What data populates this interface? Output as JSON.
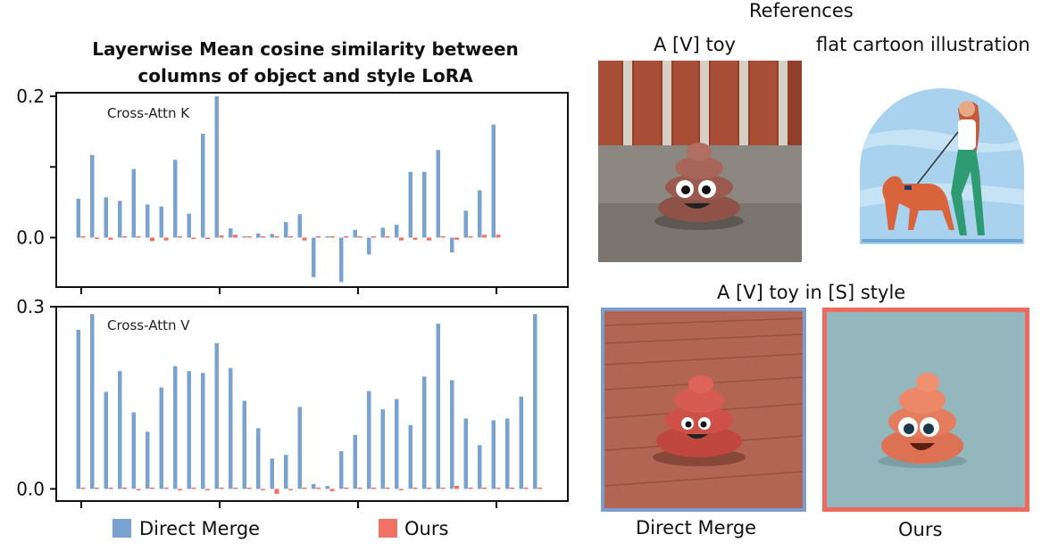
{
  "figure": {
    "references_label": "References",
    "ref1_label": "A [V] toy",
    "ref2_label": "flat cartoon illustration",
    "combined_label": "A [V] toy in [S] style",
    "result1_label": "Direct Merge",
    "result2_label": "Ours"
  },
  "colors": {
    "direct": "#7aa2d0",
    "ours": "#f07264",
    "direct_frame": "#7b9fcc",
    "ours_frame": "#ee6a5f"
  },
  "chart_data": {
    "type": "bar",
    "title": "Layerwise Mean cosine similarity between columns of object and style LoRA",
    "title_lines": [
      "Layerwise Mean cosine similarity between",
      "columns of object and style LoRA"
    ],
    "legend": [
      {
        "name": "Direct Merge",
        "color": "#7aa2d0"
      },
      {
        "name": "Ours",
        "color": "#f07264"
      }
    ],
    "legend_position": "bottom",
    "panels": [
      {
        "label": "Cross-Attn K",
        "ylim": [
          -0.07,
          0.205
        ],
        "yticks": [
          {
            "value": 0.2,
            "label": "0.2"
          },
          {
            "value": 0.1,
            "label": ""
          },
          {
            "value": 0.0,
            "label": "0.0"
          }
        ],
        "series": [
          {
            "name": "Direct Merge",
            "values": [
              0.055,
              0.117,
              0.057,
              0.052,
              0.097,
              0.047,
              0.044,
              0.11,
              0.034,
              0.147,
              0.2,
              0.013,
              0.0,
              0.006,
              0.005,
              0.022,
              0.033,
              -0.056,
              0.0,
              -0.063,
              0.011,
              -0.024,
              0.014,
              0.018,
              0.093,
              0.093,
              0.124,
              -0.021,
              0.038,
              0.067,
              0.16
            ]
          },
          {
            "name": "Ours",
            "values": [
              0.001,
              -0.001,
              -0.003,
              0.0,
              0.001,
              -0.005,
              -0.004,
              0.001,
              -0.002,
              -0.002,
              0.003,
              0.004,
              0.001,
              0.0,
              0.002,
              0.001,
              -0.004,
              0.002,
              0.0,
              0.001,
              0.0,
              0.002,
              0.001,
              -0.004,
              -0.003,
              -0.004,
              0.002,
              -0.003,
              0.002,
              0.004,
              0.004
            ]
          }
        ]
      },
      {
        "label": "Cross-Attn V",
        "ylim": [
          -0.02,
          0.3
        ],
        "yticks": [
          {
            "value": 0.3,
            "label": "0.3"
          },
          {
            "value": 0.0,
            "label": "0.0"
          }
        ],
        "series": [
          {
            "name": "Direct Merge",
            "values": [
              0.262,
              0.288,
              0.16,
              0.194,
              0.126,
              0.094,
              0.167,
              0.202,
              0.194,
              0.191,
              0.24,
              0.199,
              0.145,
              0.1,
              0.05,
              0.056,
              0.135,
              0.008,
              0.005,
              0.062,
              0.089,
              0.161,
              0.131,
              0.148,
              0.105,
              0.185,
              0.272,
              0.179,
              0.116,
              0.072,
              0.113,
              0.116,
              0.152,
              0.288
            ]
          },
          {
            "name": "Ours",
            "values": [
              0.0,
              0.0,
              0.0,
              0.001,
              -0.002,
              0.001,
              0.0,
              -0.002,
              0.0,
              -0.002,
              0.001,
              0.002,
              0.0,
              -0.001,
              -0.008,
              -0.001,
              0.002,
              0.001,
              -0.004,
              0.001,
              0.0,
              0.0,
              0.0,
              -0.002,
              0.0,
              0.001,
              0.0,
              0.005,
              0.0,
              0.0,
              0.0,
              0.002,
              0.001,
              0.0
            ]
          }
        ]
      }
    ]
  }
}
